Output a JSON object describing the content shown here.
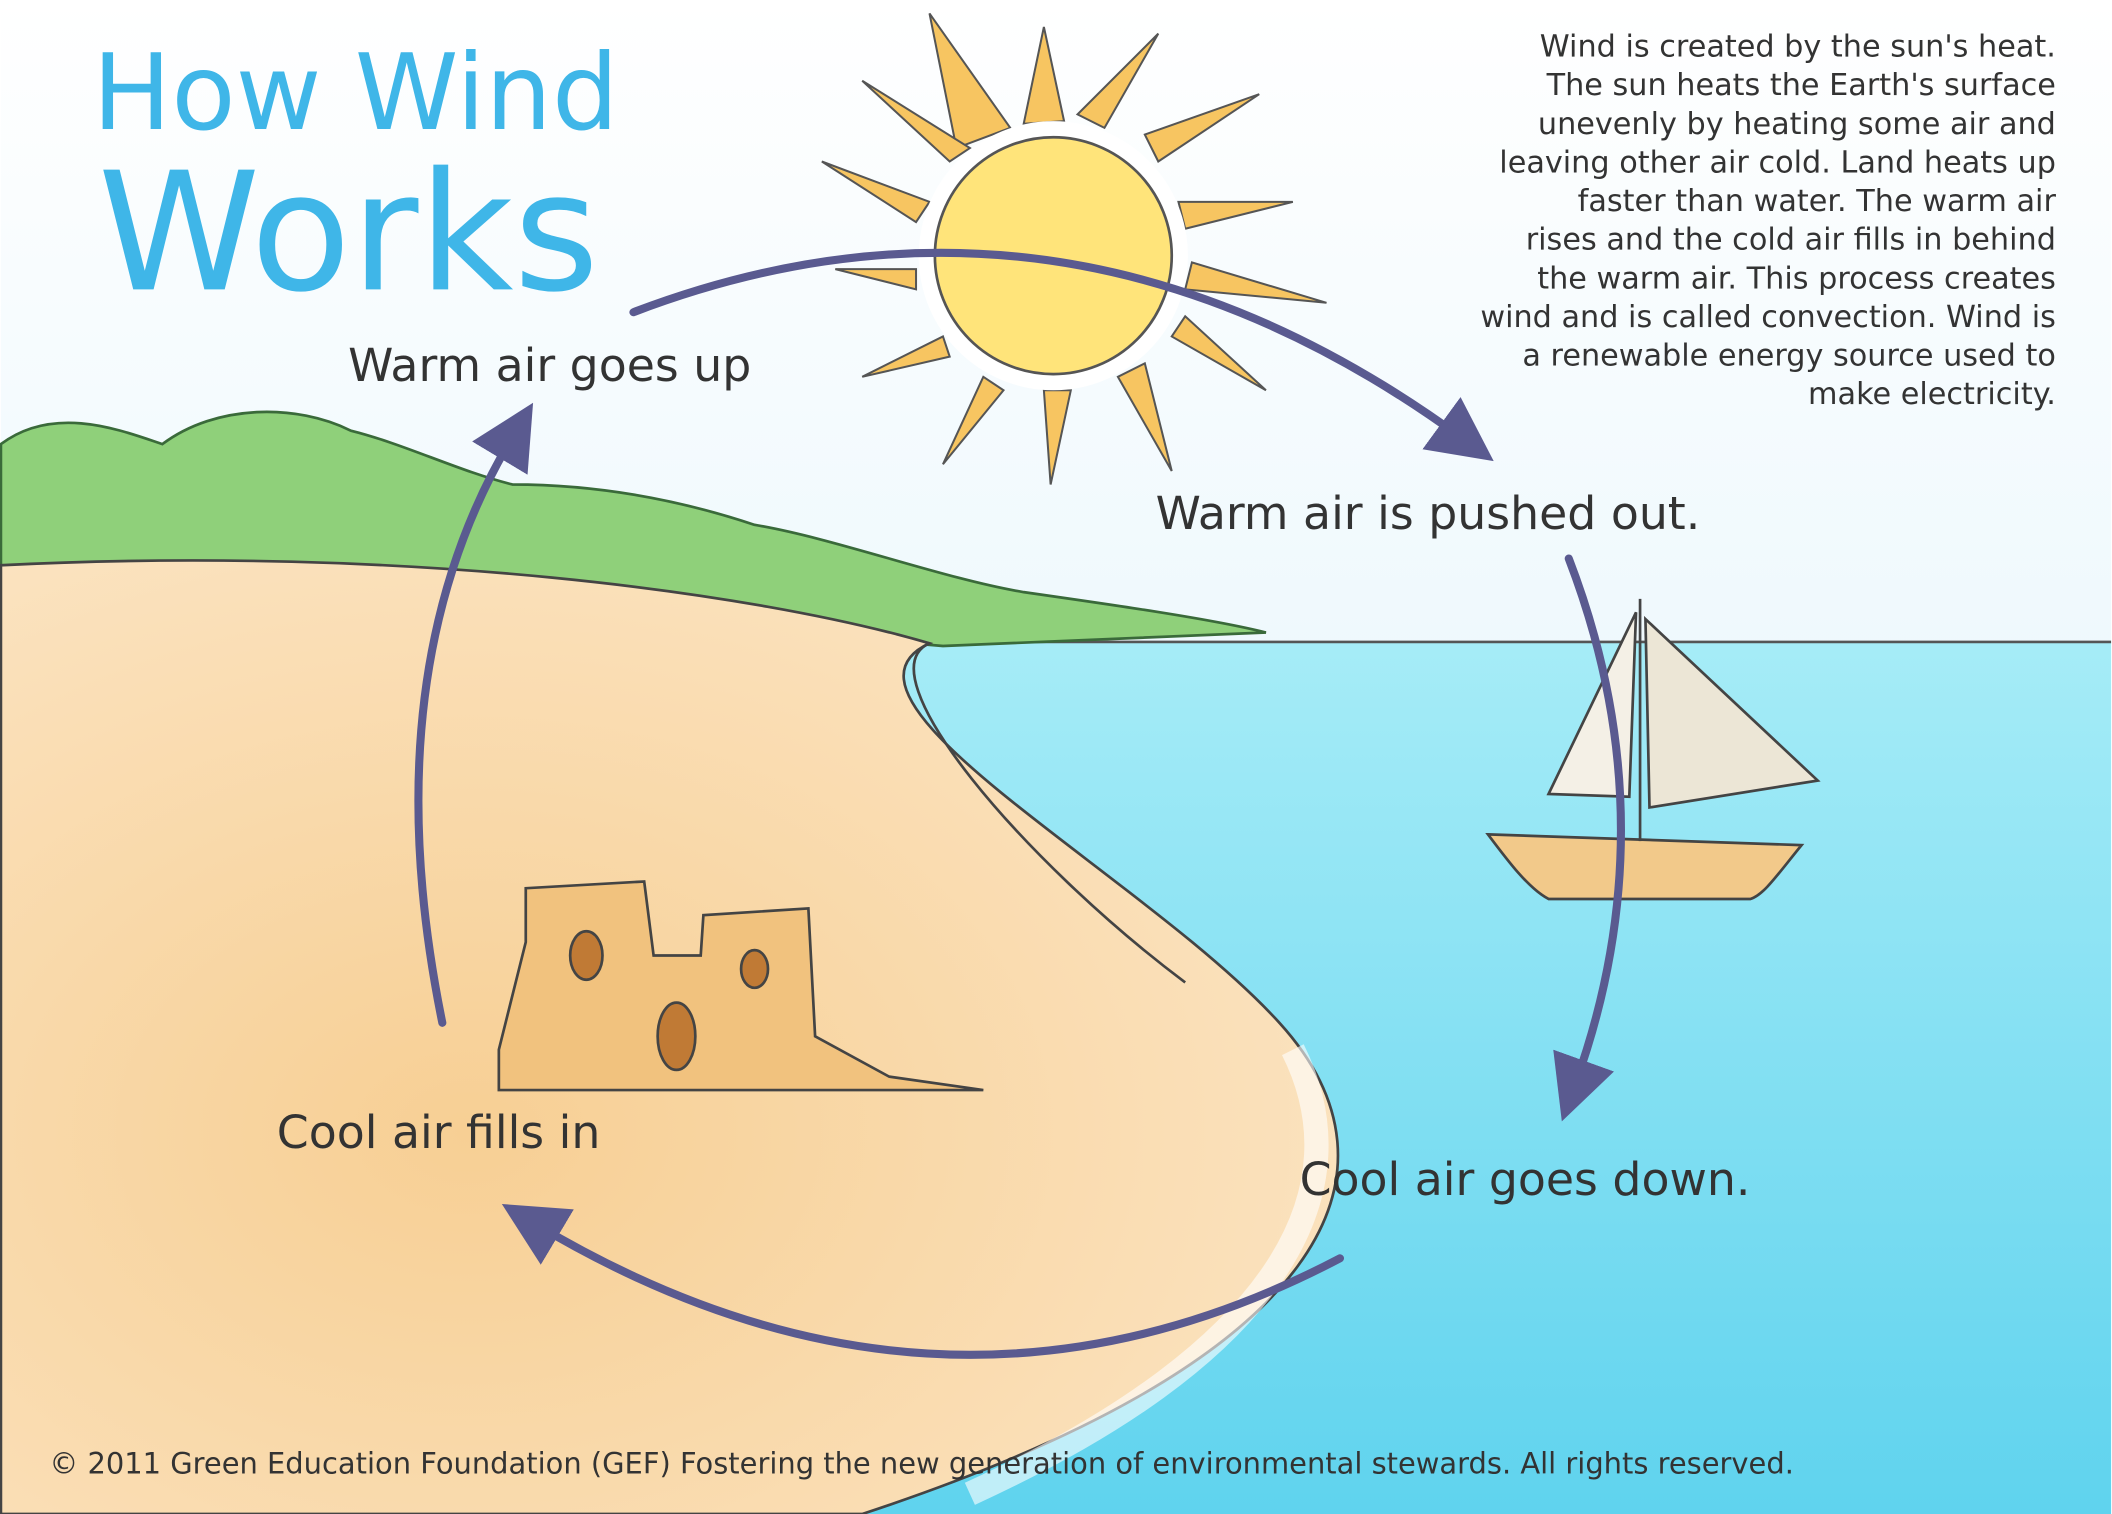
{
  "title": {
    "line1": "How Wind",
    "line2": "Works"
  },
  "description": [
    "Wind is created by the sun's heat.",
    "The sun heats the Earth's surface",
    "unevenly by heating some air and",
    "leaving other air cold. Land heats up",
    "faster than water. The warm air",
    "rises and the cold air fills in behind",
    "the warm air. This process creates",
    "wind and is called convection. Wind is",
    "a renewable energy source used to",
    "make electricity."
  ],
  "labels": {
    "warm_up": "Warm air goes up",
    "warm_out": "Warm air is pushed out.",
    "cool_fills": "Cool air fills in",
    "cool_down": "Cool air goes down."
  },
  "footer": "© 2011 Green Education Foundation (GEF) Fostering the new generation of environmental stewards. All rights reserved."
}
